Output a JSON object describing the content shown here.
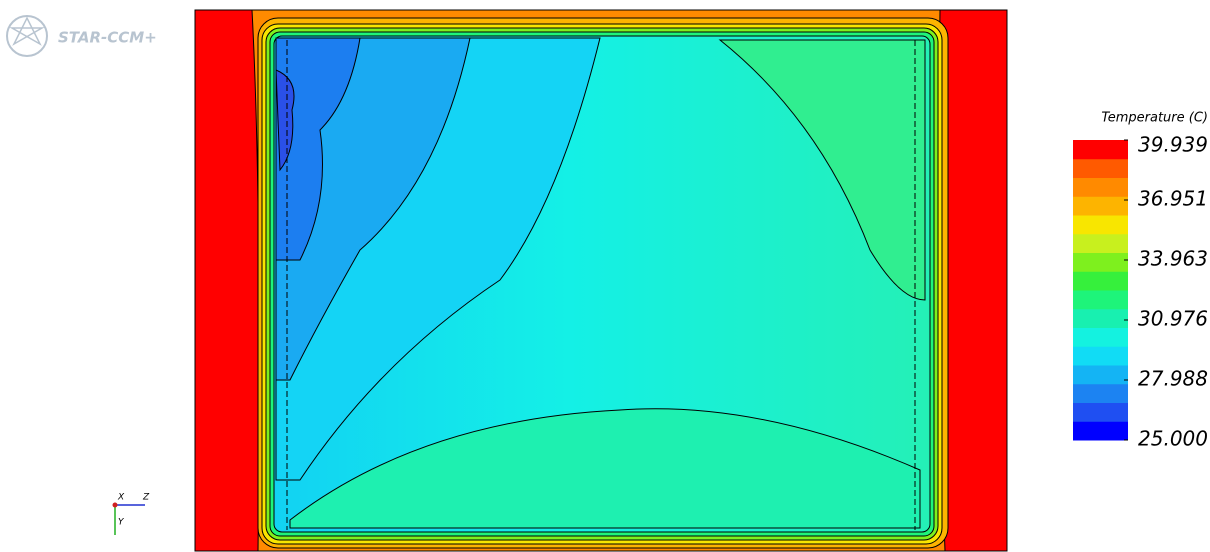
{
  "logo": "STAR-CCM+",
  "legend": {
    "title": "Temperature (C)",
    "ylim": [
      25,
      39.939
    ],
    "ticks": [
      39.939,
      36.951,
      33.963,
      30.976,
      27.988,
      {
        "value": 25,
        "label": "25.000"
      }
    ],
    "colors": [
      "#0000ff",
      "#1f4ff2",
      "#1c83f2",
      "#14b4f4",
      "#11dcf5",
      "#14f2e0",
      "#18f0b0",
      "#1ef47a",
      "#36f03c",
      "#7ef01e",
      "#c8f01e",
      "#f8e600",
      "#fdb400",
      "#ff8a00",
      "#ff5a00",
      "#ff0000"
    ]
  },
  "triad": {
    "x": "X",
    "z": "Z",
    "y": "Y"
  }
}
